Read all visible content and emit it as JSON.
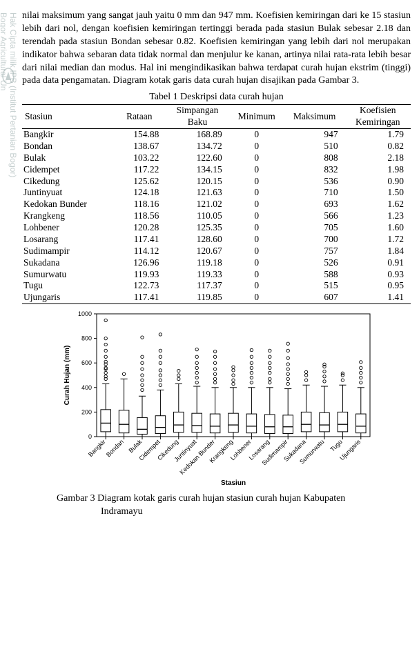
{
  "paragraph": "nilai maksimum yang sangat jauh yaitu 0 mm dan 947 mm. Koefisien kemiringan dari ke 15 stasiun lebih dari nol, dengan koefisien kemiringan tertinggi berada pada stasiun Bulak sebesar 2.18 dan terendah pada stasiun Bondan sebesar 0.82. Koefisien kemiringan yang lebih dari nol merupakan indikator bahwa sebaran data tidak normal dan menjulur ke kanan, artinya nilai rata-rata lebih besar dari nilai median dan modus. Hal ini mengindikasikan bahwa terdapat curah hujan ekstrim (tinggi) pada data pengamatan. Diagram kotak garis data curah hujan disajikan pada Gambar 3.",
  "table": {
    "caption": "Tabel 1 Deskripsi data curah hujan",
    "columns": {
      "c1": "Stasiun",
      "c2": "Rataan",
      "c3_top": "Simpangan",
      "c3_bot": "Baku",
      "c4": "Minimum",
      "c5": "Maksimum",
      "c6_top": "Koefisien",
      "c6_bot": "Kemiringan"
    },
    "rows": [
      {
        "stasiun": "Bangkir",
        "rataan": "154.88",
        "sb": "168.89",
        "min": "0",
        "max": "947",
        "koef": "1.79"
      },
      {
        "stasiun": "Bondan",
        "rataan": "138.67",
        "sb": "134.72",
        "min": "0",
        "max": "510",
        "koef": "0.82"
      },
      {
        "stasiun": "Bulak",
        "rataan": "103.22",
        "sb": "122.60",
        "min": "0",
        "max": "808",
        "koef": "2.18"
      },
      {
        "stasiun": "Cidempet",
        "rataan": "117.22",
        "sb": "134.15",
        "min": "0",
        "max": "832",
        "koef": "1.98"
      },
      {
        "stasiun": "Cikedung",
        "rataan": "125.62",
        "sb": "120.15",
        "min": "0",
        "max": "536",
        "koef": "0.90"
      },
      {
        "stasiun": "Juntinyuat",
        "rataan": "124.18",
        "sb": "121.63",
        "min": "0",
        "max": "710",
        "koef": "1.50"
      },
      {
        "stasiun": "Kedokan Bunder",
        "rataan": "118.16",
        "sb": "121.02",
        "min": "0",
        "max": "693",
        "koef": "1.62"
      },
      {
        "stasiun": "Krangkeng",
        "rataan": "118.56",
        "sb": "110.05",
        "min": "0",
        "max": "566",
        "koef": "1.23"
      },
      {
        "stasiun": "Lohbener",
        "rataan": "120.28",
        "sb": "125.35",
        "min": "0",
        "max": "705",
        "koef": "1.60"
      },
      {
        "stasiun": "Losarang",
        "rataan": "117.41",
        "sb": "128.60",
        "min": "0",
        "max": "700",
        "koef": "1.72"
      },
      {
        "stasiun": "Sudimampir",
        "rataan": "114.12",
        "sb": "120.67",
        "min": "0",
        "max": "757",
        "koef": "1.84"
      },
      {
        "stasiun": "Sukadana",
        "rataan": "126.96",
        "sb": "119.18",
        "min": "0",
        "max": "526",
        "koef": "0.91"
      },
      {
        "stasiun": "Sumurwatu",
        "rataan": "119.93",
        "sb": "119.33",
        "min": "0",
        "max": "588",
        "koef": "0.93"
      },
      {
        "stasiun": "Tugu",
        "rataan": "122.73",
        "sb": "117.37",
        "min": "0",
        "max": "515",
        "koef": "0.95"
      },
      {
        "stasiun": "Ujungaris",
        "rataan": "117.41",
        "sb": "119.85",
        "min": "0",
        "max": "607",
        "koef": "1.41"
      }
    ]
  },
  "chart": {
    "type": "boxplot",
    "ylabel": "Curah Hujan (mm)",
    "xlabel": "Stasiun",
    "ylim": [
      0,
      1000
    ],
    "ytick_step": 200,
    "yticks": [
      0,
      200,
      400,
      600,
      800,
      1000
    ],
    "background_color": "#ffffff",
    "box_color": "#ffffff",
    "box_border": "#000000",
    "outlier_shape": "circle",
    "outlier_stroke": "#000000",
    "outlier_fill": "none",
    "categories": [
      "Bangkir",
      "Bondan",
      "Bulak",
      "Cidempet",
      "Cikedung",
      "Juntinyuat",
      "Kedokan Bunder",
      "Krangkeng",
      "Lohbener",
      "Losarang",
      "Sudimampir",
      "Sukadana",
      "Sumurwatu",
      "Tugu",
      "Ujungaris"
    ],
    "series": [
      {
        "q1": 40,
        "median": 110,
        "q3": 220,
        "wlo": 0,
        "whi": 430,
        "out": [
          470,
          490,
          520,
          550,
          560,
          590,
          610,
          650,
          700,
          750,
          800,
          947
        ]
      },
      {
        "q1": 30,
        "median": 100,
        "q3": 215,
        "wlo": 0,
        "whi": 470,
        "out": [
          510
        ]
      },
      {
        "q1": 20,
        "median": 60,
        "q3": 155,
        "wlo": 0,
        "whi": 330,
        "out": [
          380,
          420,
          460,
          500,
          550,
          600,
          650,
          808
        ]
      },
      {
        "q1": 25,
        "median": 75,
        "q3": 170,
        "wlo": 0,
        "whi": 380,
        "out": [
          420,
          460,
          500,
          540,
          600,
          650,
          700,
          832
        ]
      },
      {
        "q1": 35,
        "median": 95,
        "q3": 200,
        "wlo": 0,
        "whi": 430,
        "out": [
          470,
          500,
          536
        ]
      },
      {
        "q1": 35,
        "median": 90,
        "q3": 190,
        "wlo": 0,
        "whi": 410,
        "out": [
          440,
          480,
          520,
          560,
          600,
          650,
          710
        ]
      },
      {
        "q1": 30,
        "median": 85,
        "q3": 185,
        "wlo": 0,
        "whi": 400,
        "out": [
          440,
          470,
          510,
          550,
          600,
          650,
          693
        ]
      },
      {
        "q1": 35,
        "median": 95,
        "q3": 190,
        "wlo": 0,
        "whi": 400,
        "out": [
          430,
          460,
          500,
          540,
          566
        ]
      },
      {
        "q1": 30,
        "median": 85,
        "q3": 185,
        "wlo": 0,
        "whi": 400,
        "out": [
          440,
          480,
          520,
          560,
          600,
          650,
          705
        ]
      },
      {
        "q1": 25,
        "median": 80,
        "q3": 180,
        "wlo": 0,
        "whi": 400,
        "out": [
          440,
          470,
          520,
          560,
          600,
          650,
          700
        ]
      },
      {
        "q1": 25,
        "median": 80,
        "q3": 175,
        "wlo": 0,
        "whi": 390,
        "out": [
          430,
          470,
          510,
          550,
          590,
          640,
          700,
          757
        ]
      },
      {
        "q1": 40,
        "median": 100,
        "q3": 200,
        "wlo": 0,
        "whi": 420,
        "out": [
          460,
          500,
          526
        ]
      },
      {
        "q1": 40,
        "median": 95,
        "q3": 195,
        "wlo": 0,
        "whi": 410,
        "out": [
          450,
          490,
          530,
          570,
          588
        ]
      },
      {
        "q1": 40,
        "median": 100,
        "q3": 200,
        "wlo": 0,
        "whi": 420,
        "out": [
          460,
          500,
          515
        ]
      },
      {
        "q1": 30,
        "median": 85,
        "q3": 185,
        "wlo": 0,
        "whi": 400,
        "out": [
          440,
          480,
          520,
          560,
          607
        ]
      }
    ]
  },
  "figure_caption_l1": "Gambar 3 Diagram kotak garis curah hujan stasiun curah hujan Kabupaten",
  "figure_caption_l2": "Indramayu",
  "watermark_top": "Hak Cipta milik IPB (Institut Pertanian Bogor)",
  "watermark_bottom": "Bogor Agricultural Un"
}
